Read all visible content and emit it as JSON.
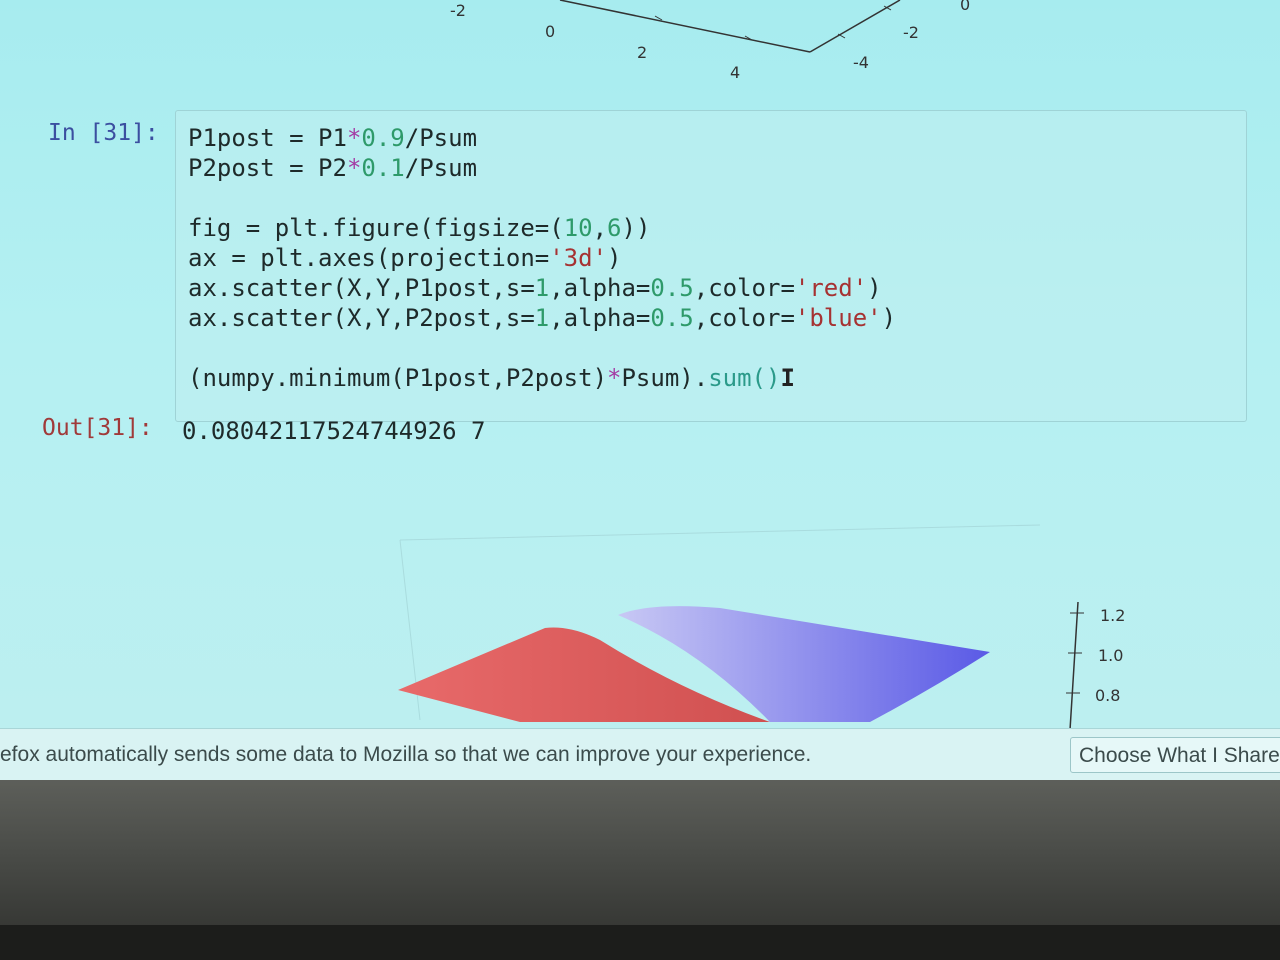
{
  "top_plot": {
    "tick_labels": [
      "-2",
      "0",
      "2",
      "4",
      "-2",
      "-4",
      "0"
    ]
  },
  "cell": {
    "in_prompt": "In [31]:",
    "code_lines": [
      [
        {
          "t": "P1post = P1"
        },
        {
          "t": "*",
          "c": "op"
        },
        {
          "t": "0.9",
          "c": "num"
        },
        {
          "t": "/Psum"
        }
      ],
      [
        {
          "t": "P2post = P2"
        },
        {
          "t": "*",
          "c": "op"
        },
        {
          "t": "0.1",
          "c": "num"
        },
        {
          "t": "/Psum"
        }
      ],
      [],
      [
        {
          "t": "fig = plt.figure(figsize=("
        },
        {
          "t": "10",
          "c": "num"
        },
        {
          "t": ","
        },
        {
          "t": "6",
          "c": "num"
        },
        {
          "t": "))"
        }
      ],
      [
        {
          "t": "ax = plt.axes(projection="
        },
        {
          "t": "'3d'",
          "c": "str"
        },
        {
          "t": ")"
        }
      ],
      [
        {
          "t": "ax.scatter(X,Y,P1post,s="
        },
        {
          "t": "1",
          "c": "num"
        },
        {
          "t": ",alpha="
        },
        {
          "t": "0.5",
          "c": "num"
        },
        {
          "t": ",color="
        },
        {
          "t": "'red'",
          "c": "str"
        },
        {
          "t": ")"
        }
      ],
      [
        {
          "t": "ax.scatter(X,Y,P2post,s="
        },
        {
          "t": "1",
          "c": "num"
        },
        {
          "t": ",alpha="
        },
        {
          "t": "0.5",
          "c": "num"
        },
        {
          "t": ",color="
        },
        {
          "t": "'blue'",
          "c": "str"
        },
        {
          "t": ")"
        }
      ],
      [],
      [
        {
          "t": "(numpy.minimum(P1post,P2post)"
        },
        {
          "t": "*",
          "c": "op"
        },
        {
          "t": "Psum)."
        },
        {
          "t": "sum()",
          "c": "fn"
        },
        {
          "t": "I",
          "c": "cursor"
        }
      ]
    ],
    "out_prompt": "Out[31]:",
    "out_value": "0.08042117524744926 7"
  },
  "bottom_plot": {
    "z_ticks": [
      "1.2",
      "1.0",
      "0.8"
    ],
    "colors": {
      "red_surface": "#e06060",
      "blue_surface": "#6a6ae8"
    }
  },
  "notification": {
    "text": "efox automatically sends some data to Mozilla so that we can improve your experience.",
    "button_label": "Choose What I Share"
  }
}
